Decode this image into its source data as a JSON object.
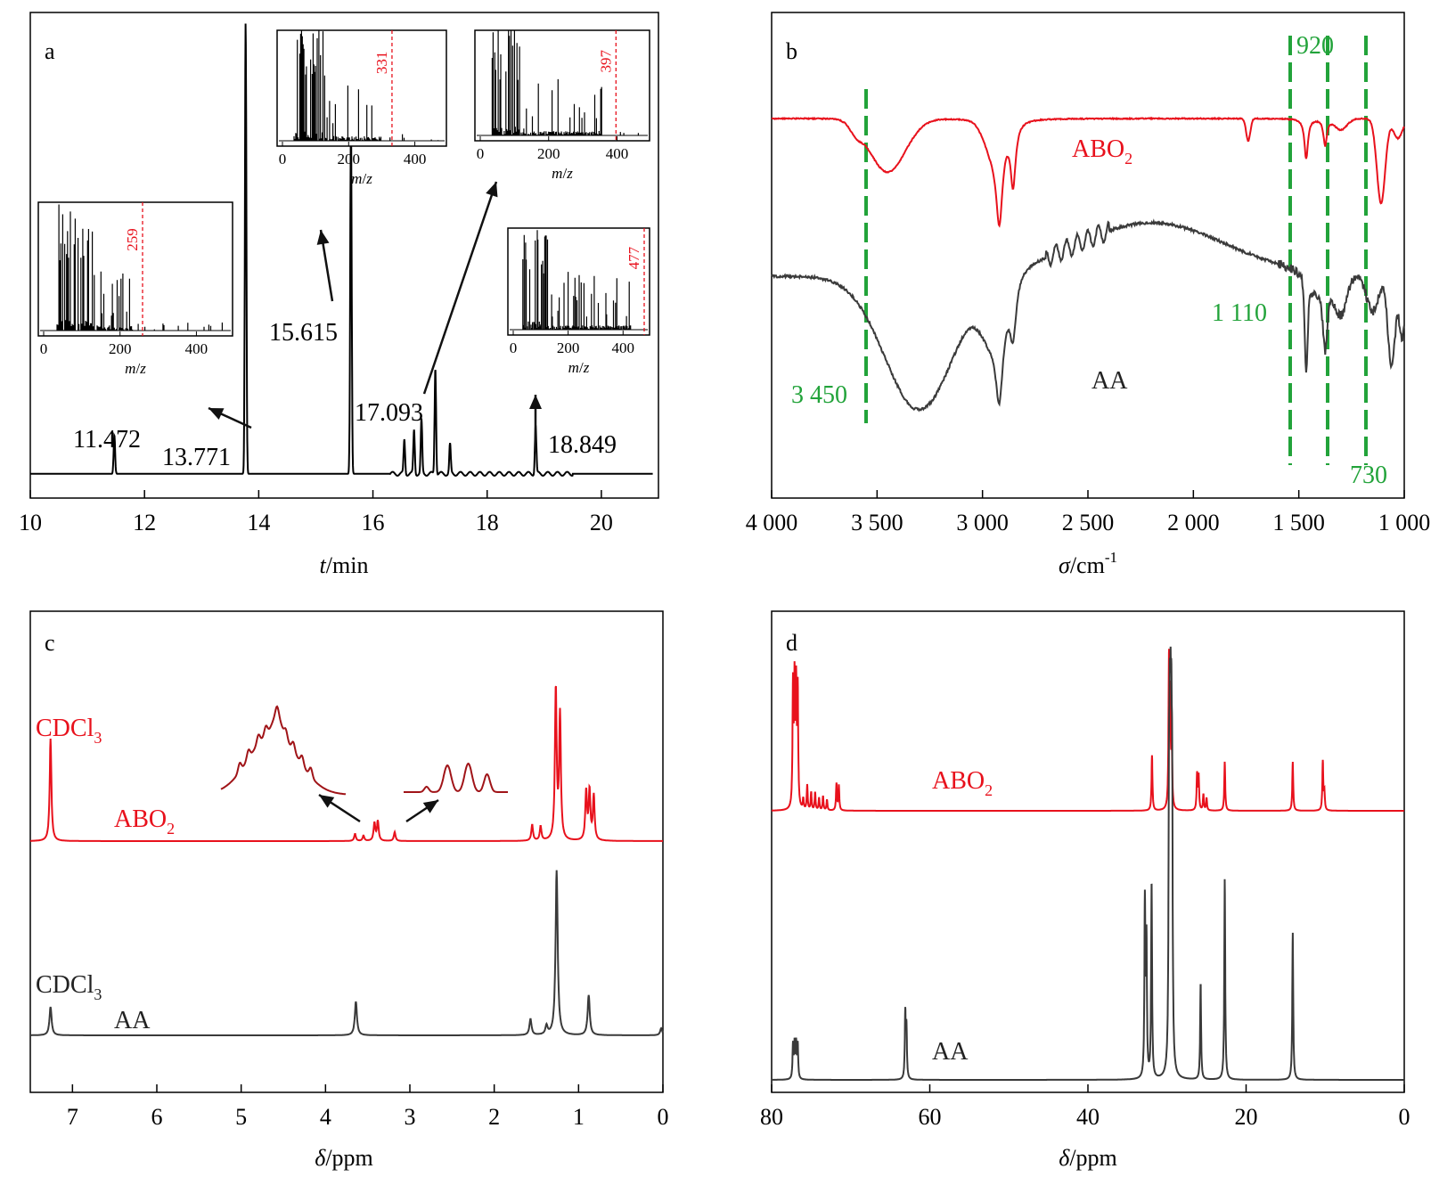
{
  "chart_data": [
    {
      "panel": "a",
      "type": "line",
      "xlabel": {
        "var": "t",
        "unit": "/min"
      },
      "xlim": [
        10,
        21
      ],
      "xticks": [
        "10",
        "12",
        "14",
        "16",
        "18",
        "20"
      ],
      "series": [
        {
          "color": "#000000",
          "baseline": 0.05,
          "peaks": [
            {
              "rt": 11.472,
              "height": 0.08
            },
            {
              "rt": 13.771,
              "height": 0.93
            },
            {
              "rt": 15.615,
              "height": 0.73
            },
            {
              "rt": 16.55,
              "height": 0.07
            },
            {
              "rt": 16.72,
              "height": 0.09
            },
            {
              "rt": 16.85,
              "height": 0.11
            },
            {
              "rt": 17.093,
              "height": 0.22
            },
            {
              "rt": 17.35,
              "height": 0.06
            },
            {
              "rt": 18.849,
              "height": 0.1
            }
          ]
        }
      ],
      "annotations": [
        "11.472",
        "13.771",
        "15.615",
        "17.093",
        "18.849"
      ],
      "insets": [
        {
          "label": "259",
          "xlabel": "m/z",
          "xticks": [
            "0",
            "200",
            "400"
          ],
          "marker_mz": 259
        },
        {
          "label": "331",
          "xlabel": "m/z",
          "xticks": [
            "0",
            "200",
            "400"
          ],
          "marker_mz": 331
        },
        {
          "label": "397",
          "xlabel": "m/z",
          "xticks": [
            "0",
            "200",
            "400"
          ],
          "marker_mz": 397
        },
        {
          "label": "477",
          "xlabel": "m/z",
          "xticks": [
            "0",
            "200",
            "400"
          ],
          "marker_mz": 477
        }
      ]
    },
    {
      "panel": "b",
      "type": "line",
      "xlabel": {
        "var": "σ",
        "unit": "/cm",
        "sup": "-1"
      },
      "xlim": [
        4000,
        1000
      ],
      "xticks": [
        "4 000",
        "3 500",
        "3 000",
        "2 500",
        "2 000",
        "1 500",
        "1 000"
      ],
      "series": [
        {
          "name": "ABO2",
          "color": "#e8111c"
        },
        {
          "name": "AA",
          "color": "#3a3a3a"
        }
      ],
      "guide_lines": [
        "3 450",
        "1 110",
        "920",
        "730"
      ],
      "guide_color": "#22a33a"
    },
    {
      "panel": "c",
      "type": "line",
      "xlabel": {
        "var": "δ",
        "unit": "/ppm"
      },
      "xlim": [
        7.5,
        0
      ],
      "xticks": [
        "7",
        "6",
        "5",
        "4",
        "3",
        "2",
        "1",
        "0"
      ],
      "series": [
        {
          "name": "ABO2",
          "color": "#e8111c",
          "peaks_ppm": [
            7.26,
            3.65,
            3.4,
            3.2,
            1.55,
            1.45,
            1.25,
            0.9,
            0.88,
            0.82
          ]
        },
        {
          "name": "AA",
          "color": "#3a3a3a",
          "peaks_ppm": [
            7.26,
            3.64,
            1.57,
            1.4,
            1.26,
            0.88
          ]
        }
      ],
      "solvent_label": "CDCl3"
    },
    {
      "panel": "d",
      "type": "line",
      "xlabel": {
        "var": "δ",
        "unit": "/ppm"
      },
      "xlim": [
        80,
        0
      ],
      "xticks": [
        "80",
        "60",
        "40",
        "20",
        "0"
      ],
      "series": [
        {
          "name": "ABO2",
          "color": "#e8111c",
          "peaks_ppm": [
            77.3,
            77.0,
            76.7,
            75.5,
            74.5,
            73.5,
            71.5,
            31.9,
            29.7,
            29.4,
            26.1,
            25.3,
            22.7,
            14.1,
            10.3
          ]
        },
        {
          "name": "AA",
          "color": "#3a3a3a",
          "peaks_ppm": [
            77.3,
            77.0,
            76.7,
            63.1,
            32.8,
            31.9,
            29.7,
            29.5,
            29.4,
            25.7,
            22.7,
            14.1
          ]
        }
      ]
    }
  ],
  "labels": {
    "panel_a": "a",
    "panel_b": "b",
    "panel_c": "c",
    "panel_d": "d",
    "rt_11472": "11.472",
    "rt_13771": "13.771",
    "rt_15615": "15.615",
    "rt_17093": "17.093",
    "rt_18849": "18.849",
    "t_var": "t",
    "t_unit": "/min",
    "sigma_var": "σ",
    "sigma_unit": "/cm",
    "sigma_sup": "-1",
    "delta_var": "δ",
    "ppm_unit": "/ppm",
    "mz_m": "m",
    "mz_slash": "/",
    "mz_z": "z",
    "inset_259": "259",
    "inset_331": "331",
    "inset_397": "397",
    "inset_477": "477",
    "ir_3450": "3 450",
    "ir_1110": "1 110",
    "ir_920": "920",
    "ir_730": "730",
    "abo2_main": "ABO",
    "abo2_sub": "2",
    "aa": "AA",
    "cdcl3_main": "CDCl",
    "cdcl3_sub": "3"
  },
  "colors": {
    "red": "#e8111c",
    "dark_red": "#a01418",
    "gray": "#3a3a3a",
    "green": "#22a33a",
    "black": "#000000"
  }
}
